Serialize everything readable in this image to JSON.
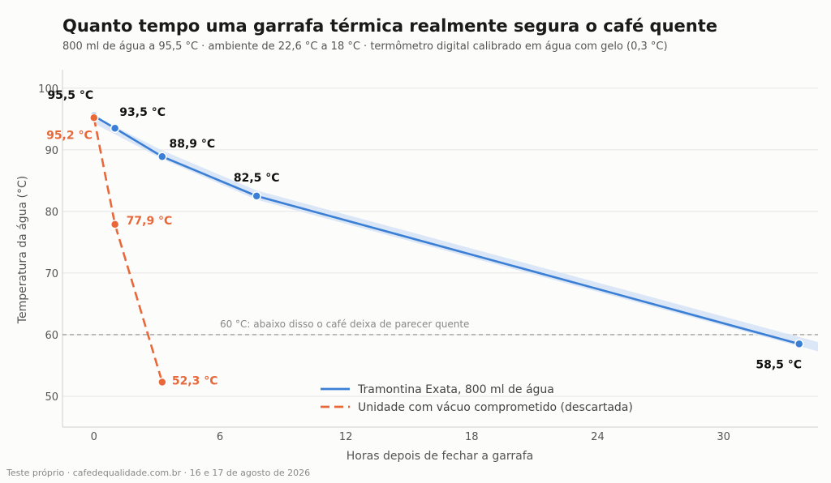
{
  "title": "Quanto tempo uma garrafa térmica realmente segura o café quente",
  "subtitle": "800 ml de água a 95,5 °C · ambiente de 22,6 °C a 18 °C · termômetro digital calibrado em água com gelo (0,3 °C)",
  "footer": "Teste próprio · cafedequalidade.com.br · 16 e 17 de agosto de 2026",
  "chart_data": {
    "type": "line",
    "xlabel": "Horas depois de fechar a garrafa",
    "ylabel": "Temperatura da água (°C)",
    "xlim": [
      -1.5,
      34.5
    ],
    "ylim": [
      45,
      103
    ],
    "xticks": [
      0,
      6,
      12,
      18,
      24,
      30
    ],
    "yticks": [
      50,
      60,
      70,
      80,
      90,
      100
    ],
    "grid": "horizontal",
    "legend_placement": "bottom-center",
    "reference_line": {
      "y": 60,
      "label": "60 °C: abaixo disso o café deixa de parecer quente"
    },
    "series": [
      {
        "name": "Tramontina Exata, 800 ml de água",
        "color": "#3a7fd5",
        "style": "solid",
        "band_color": "#d9e6f6",
        "points": [
          {
            "x": 0,
            "y": 95.5,
            "label": "95,5 °C"
          },
          {
            "x": 1,
            "y": 93.5,
            "label": "93,5 °C"
          },
          {
            "x": 3.25,
            "y": 88.9,
            "label": "88,9 °C"
          },
          {
            "x": 7.75,
            "y": 82.5,
            "label": "82,5 °C"
          },
          {
            "x": 33.6,
            "y": 58.5,
            "label": "58,5 °C"
          }
        ],
        "band": [
          {
            "x": 0,
            "low": 94.3,
            "high": 95.5
          },
          {
            "x": 3.25,
            "low": 88.5,
            "high": 89.9
          },
          {
            "x": 7.75,
            "low": 81.9,
            "high": 83.4
          },
          {
            "x": 34.5,
            "low": 57.3,
            "high": 58.8
          }
        ]
      },
      {
        "name": "Unidade com vácuo comprometido (descartada)",
        "color": "#e8683a",
        "style": "dashed",
        "points": [
          {
            "x": 0,
            "y": 95.2,
            "label": "95,2 °C"
          },
          {
            "x": 1,
            "y": 77.9,
            "label": "77,9 °C"
          },
          {
            "x": 3.25,
            "y": 52.3,
            "label": "52,3 °C"
          }
        ]
      }
    ]
  }
}
